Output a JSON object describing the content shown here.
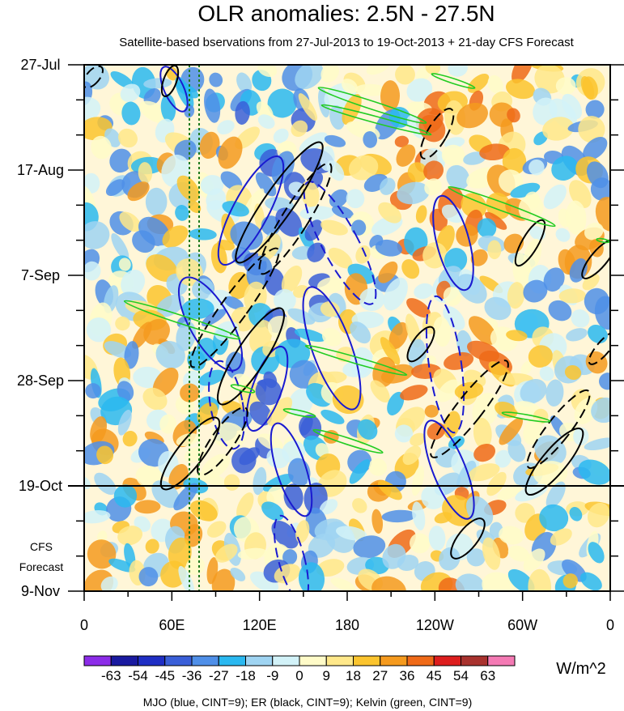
{
  "chart_data": {
    "type": "heatmap",
    "title": "OLR anomalies: 2.5N - 27.5N",
    "subtitle": "Satellite-based bservations from 27-Jul-2013 to 19-Oct-2013 + 21-day CFS Forecast",
    "x_ticks": [
      "0",
      "60E",
      "120E",
      "180",
      "120W",
      "60W",
      "0"
    ],
    "xlim": [
      0,
      360
    ],
    "y_ticks": [
      "27-Jul",
      "17-Aug",
      "7-Sep",
      "28-Sep",
      "19-Oct",
      "9-Nov"
    ],
    "forecast_label_lines": [
      "CFS",
      "Forecast"
    ],
    "forecast_start": "19-Oct",
    "colorbar": {
      "levels": [
        "-63",
        "-54",
        "-45",
        "-36",
        "-27",
        "-18",
        "-9",
        "0",
        "9",
        "18",
        "27",
        "36",
        "45",
        "54",
        "63"
      ],
      "colors": [
        "#8c2ce8",
        "#1a1aa0",
        "#1f2ec4",
        "#3a5fd8",
        "#4f8fe8",
        "#2ab8f0",
        "#9fd4f2",
        "#d2f2f8",
        "#fffbc8",
        "#ffe88a",
        "#fbc42e",
        "#f59a1e",
        "#ef6a18",
        "#dd1e1e",
        "#a8322e",
        "#f47ab4"
      ],
      "units": "W/m^2"
    },
    "legend_note": "MJO (blue, CINT=9); ER (black, CINT=9); Kelvin (green, CINT=9)",
    "overlay_colors": {
      "mjo": "#1a1ad0",
      "er": "#000000",
      "kelvin": "#22cc22",
      "ref_lines": "#1e7a1e"
    }
  }
}
